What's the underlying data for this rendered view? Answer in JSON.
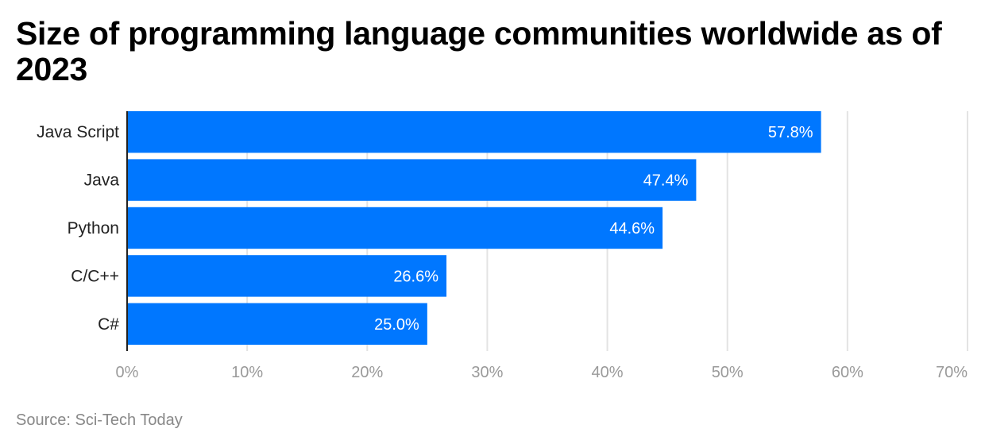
{
  "chart_data": {
    "type": "bar",
    "orientation": "horizontal",
    "title": "Size of programming language communities worldwide as of 2023",
    "categories": [
      "Java Script",
      "Java",
      "Python",
      "C/C++",
      "C#"
    ],
    "values": [
      57.8,
      47.4,
      44.6,
      26.6,
      25.0
    ],
    "data_labels": [
      "57.8%",
      "47.4%",
      "44.6%",
      "26.6%",
      "25.0%"
    ],
    "xlabel": "",
    "ylabel": "",
    "xlim": [
      0,
      70
    ],
    "x_ticks": [
      0,
      10,
      20,
      30,
      40,
      50,
      60,
      70
    ],
    "x_tick_labels": [
      "0%",
      "10%",
      "20%",
      "30%",
      "40%",
      "50%",
      "60%",
      "70%"
    ],
    "grid": true,
    "bar_color": "#0077ff",
    "source": "Source: Sci-Tech Today"
  }
}
